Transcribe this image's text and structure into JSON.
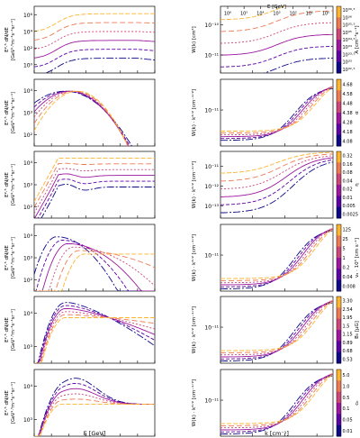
{
  "chart_data": {
    "type": "line",
    "layout": "6 rows x 2 columns grid of panels with shared axes; right panels carry colorbars",
    "left_panels": {
      "x_scale": "log",
      "xlim": [
        0.1,
        1000000
      ],
      "x_ticks": [
        "10⁻¹",
        "10⁰",
        "10¹",
        "10²",
        "10³",
        "10⁴",
        "10⁵",
        "10⁶"
      ],
      "xlabel": "E [GeV]",
      "y_scale": "log",
      "ylabel_line1": "E²·⁵ dN/dE",
      "ylabel_line2": "[GeV¹·⁵m⁻²s⁻¹sr⁻¹]"
    },
    "right_panels": {
      "x_scale": "log",
      "xlim": [
        1e-19,
        1e-12
      ],
      "x_ticks": [
        "10⁻¹⁹",
        "10⁻¹⁷",
        "10⁻¹⁵",
        "10⁻¹³"
      ],
      "xlabel": "k [cm⁻¹]",
      "top_xlabel": "E [GeV]",
      "top_x_ticks": [
        "10⁶",
        "10⁵",
        "10⁴",
        "10³",
        "10²",
        "10¹",
        "10⁰"
      ],
      "y_scale": "log"
    },
    "rows": [
      {
        "left": {
          "y_ticks": [
            "10⁰",
            "10²",
            "10⁴",
            "10⁶"
          ],
          "ylim_exp": [
            0,
            7.2
          ]
        },
        "right": {
          "ylabel": "W(k) [cm³]",
          "y_ticks": [
            "10⁻¹¹",
            "10⁻¹⁰"
          ],
          "ylim_exp": [
            -11.9,
            -9.7
          ]
        },
        "colorbar": {
          "label": "A [cm⁻³s⁻¹]",
          "ticks": [
            "10³⁶·⁵",
            "10³⁶",
            "10³⁵·⁵",
            "10³⁵",
            "10³⁴·⁵",
            "10³⁴",
            "10³³·⁵",
            "10³³",
            "10³²·⁵"
          ]
        }
      },
      {
        "left": {
          "y_ticks": [
            "10²",
            "10³",
            "10⁴"
          ],
          "ylim_exp": [
            1.6,
            4.4
          ]
        },
        "right": {
          "ylabel": "W(k) · k³ᐟ² [cm⁻¹ᐟ²]",
          "y_ticks": [
            "10⁻¹¹"
          ],
          "ylim_exp": [
            -12.3,
            -10.5
          ]
        },
        "colorbar": {
          "label": "α",
          "ticks": [
            "4.68",
            "4.58",
            "4.48",
            "4.38",
            "4.28",
            "4.18",
            "4.08"
          ]
        }
      },
      {
        "left": {
          "y_ticks": [
            "10²",
            "10³",
            "10⁴"
          ],
          "ylim_exp": [
            1.6,
            4.6
          ]
        },
        "right": {
          "ylabel": "W(k) · k³ᐟ² [cm⁻¹ᐟ²]",
          "y_ticks": [
            "10⁻¹³",
            "10⁻¹²",
            "10⁻¹¹"
          ],
          "ylim_exp": [
            -13.3,
            -10.6
          ]
        },
        "colorbar": {
          "label": "η",
          "ticks": [
            "0.32",
            "0.16",
            "0.08",
            "0.04",
            "0.02",
            "0.01",
            "0.005",
            "0.0025"
          ]
        }
      },
      {
        "left": {
          "y_ticks": [
            "10²",
            "10³",
            "10⁴"
          ],
          "ylim_exp": [
            2.0,
            4.7
          ]
        },
        "right": {
          "ylabel": "W(k) · k³ᐟ² [cm⁻¹ᐟ²]",
          "y_ticks": [
            "10⁻¹¹"
          ],
          "ylim_exp": [
            -12.2,
            -10.6
          ]
        },
        "colorbar": {
          "label": "vₐ · 10⁵ [cm s⁻¹]",
          "ticks": [
            "125",
            "25",
            "5",
            "1",
            "0.2",
            "0.04",
            "0.008"
          ]
        }
      },
      {
        "left": {
          "y_ticks": [
            "10³",
            "10⁴"
          ],
          "ylim_exp": [
            2.6,
            4.8
          ]
        },
        "right": {
          "ylabel": "W(k) · k³ᐟ² [cm⁻¹ᐟ²]",
          "y_ticks": [
            "10⁻¹¹"
          ],
          "ylim_exp": [
            -12.2,
            -10.6
          ]
        },
        "colorbar": {
          "label": "B₀ [μG]",
          "ticks": [
            "3.30",
            "2.54",
            "1.95",
            "1.5",
            "1.15",
            "0.89",
            "0.68",
            "0.53"
          ]
        }
      },
      {
        "left": {
          "y_ticks": [
            "10³",
            "10⁴"
          ],
          "ylim_exp": [
            2.6,
            4.9
          ]
        },
        "right": {
          "ylabel": "W(k) · k³ᐟ² [cm⁻¹ᐟ²]",
          "y_ticks": [
            "10⁻¹¹"
          ],
          "ylim_exp": [
            -12.2,
            -10.6
          ]
        },
        "colorbar": {
          "label": "cₖ",
          "ticks": [
            "5.0",
            "1.0",
            "0.5",
            "0.1",
            "0.05",
            "0.01"
          ]
        }
      }
    ],
    "series_colors": [
      "#0d0887",
      "#5c01a6",
      "#9c179e",
      "#cc4778",
      "#ed7953",
      "#fdb42f"
    ],
    "series_dashes": [
      "8,2,2,2",
      "4,2",
      "",
      "2,2",
      "6,3",
      "5,2"
    ]
  }
}
